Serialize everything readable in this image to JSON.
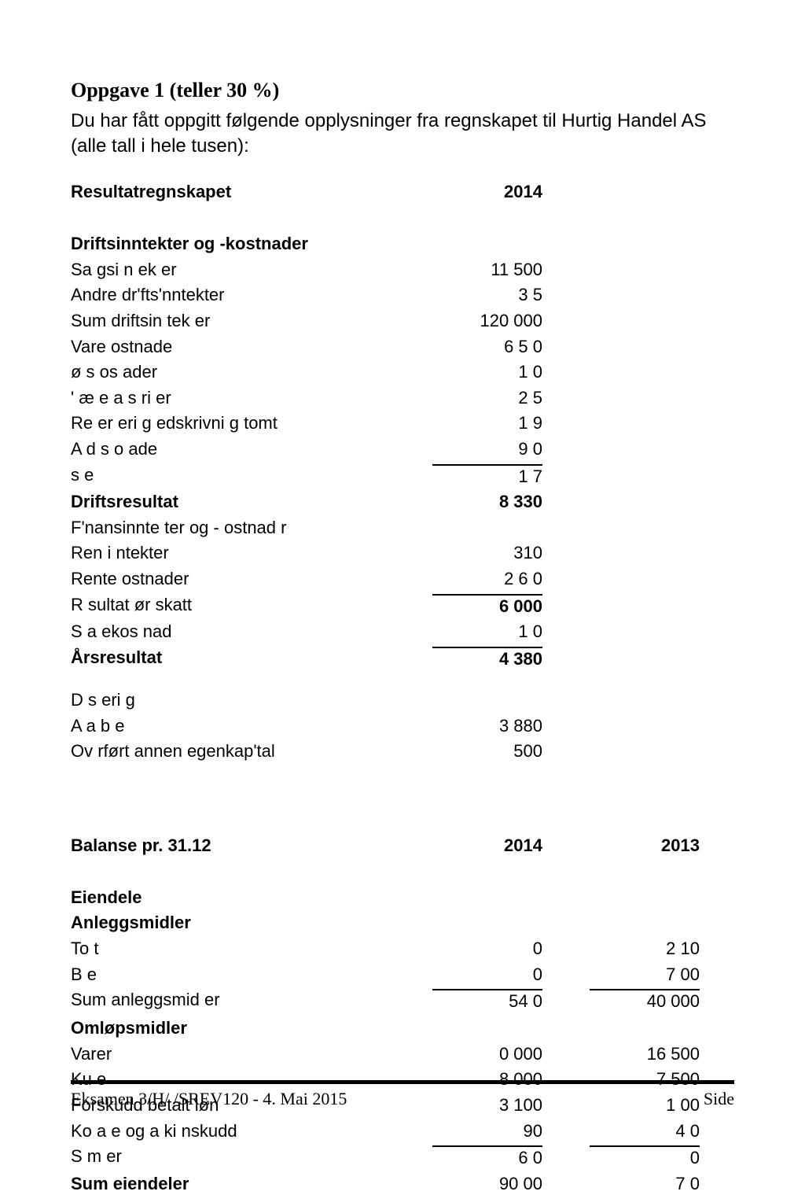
{
  "title": "Oppgave 1 (teller 30 %)",
  "intro": "Du har fått oppgitt følgende opplysninger fra regnskapet til Hurtig Handel AS (alle tall i hele tusen):",
  "resultat": {
    "header_label": "Resultatregnskapet",
    "header_year": "2014",
    "section1_label": "Driftsinntekter og -kostnader",
    "rows1": [
      {
        "label": "Sa gsi n ek er",
        "v": "11  500"
      },
      {
        "label": "Andre dr'fts'nntekter",
        "v": "3 5"
      },
      {
        "label": "Sum driftsin tek er",
        "v": "120 000"
      },
      {
        "label": "Vare ostnade",
        "v": "6  5 0"
      },
      {
        "label": "ø   s os  ader",
        "v": "1    0"
      },
      {
        "label": "'  æ e a s ri      er",
        "v": "2 5"
      },
      {
        "label": "Re er eri g edskrivni g tomt",
        "v": "1 9"
      },
      {
        "label": "A d      s o    ade",
        "v": "9   0"
      }
    ],
    "rows2": [
      {
        "label": "s     e",
        "v": "1   7"
      },
      {
        "label": "Driftsresultat",
        "v": "8 330",
        "bold": true
      }
    ],
    "section2_label": "F'nansinnte ter og -  ostnad r",
    "rows3": [
      {
        "label": "Ren  i ntekter",
        "v": "310"
      },
      {
        "label": "Rente ostnader",
        "v": "2 6 0"
      }
    ],
    "rows4": [
      {
        "label": "R sultat ør skatt",
        "v": "6 000",
        "bold_v": true
      },
      {
        "label": "S a ekos nad",
        "v": "1   0"
      }
    ],
    "rows5": [
      {
        "label": "Årsresultat",
        "v": "4 380",
        "bold": true
      }
    ],
    "disp_label": "D s    eri g",
    "rows6": [
      {
        "label": "A  a     b   e",
        "v": "3 880"
      },
      {
        "label": "Ov rført annen egenkap'tal",
        "v": "500"
      }
    ]
  },
  "balanse": {
    "header_label": "Balanse pr. 31.12",
    "year1": "2014",
    "year2": "2013",
    "eiendele_label": "Eiendele",
    "anlegg_label": "Anleggsmidler",
    "rows1": [
      {
        "label": "To  t",
        "v1": "0",
        "v2": "2 10"
      },
      {
        "label": "B       e",
        "v1": "0",
        "v2": "7  00"
      }
    ],
    "rows2": [
      {
        "label": "Sum anleggsmid er",
        "v1": "54  0",
        "v2": "40 000"
      }
    ],
    "omlop_label": "Omløpsmidler",
    "rows3": [
      {
        "label": "Varer",
        "v1": "0 000",
        "v2": "16 500"
      },
      {
        "label": "Ku   e",
        "v1": "8 000",
        "v2": "7 500"
      },
      {
        "label": "Forskudd betalt løn",
        "v1": "3 100",
        "v2": "1  00"
      },
      {
        "label": "Ko  a  e og  a ki nskudd",
        "v1": "90",
        "v2": "4    0"
      }
    ],
    "rows4": [
      {
        "label": "S     m      er",
        "v1": "6 0",
        "v2": "0"
      },
      {
        "label": "Sum eiendeler",
        "v1": "90  00",
        "v2": "7    0",
        "bold_label": true
      }
    ]
  },
  "footer": {
    "left": "Eksamen 3/H/  /SREV120 - 4. Mai 2015",
    "right": "Side"
  },
  "colors": {
    "text": "#000000",
    "bg": "#ffffff",
    "rule": "#000000"
  },
  "fonts": {
    "title_family": "Times New Roman, serif",
    "body_family": "Arial, sans-serif",
    "title_size_pt": 20,
    "body_size_pt": 17
  }
}
